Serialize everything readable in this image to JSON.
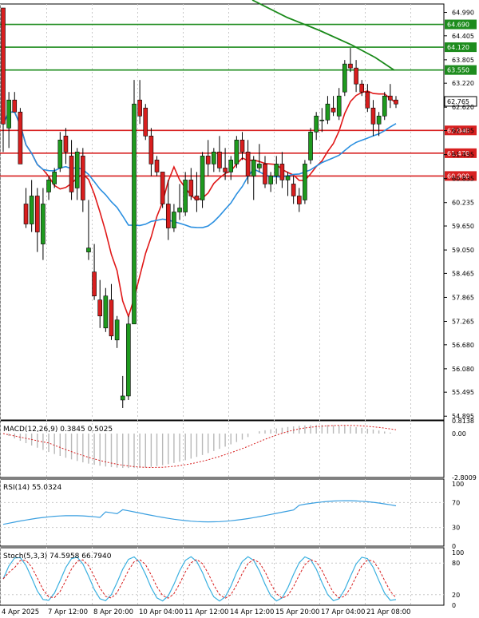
{
  "chart_data": {
    "type": "candlestick",
    "main_panel": {
      "y_axis_ticks": [
        "64.990",
        "64.405",
        "63.805",
        "63.220",
        "62.620",
        "62.035",
        "61.435",
        "60.835",
        "60.235",
        "59.650",
        "59.050",
        "58.465",
        "57.865",
        "57.265",
        "56.680",
        "56.080",
        "55.495",
        "54.895"
      ],
      "price_lines": [
        {
          "value": 64.69,
          "label": "64.690",
          "color": "#1e8c1e"
        },
        {
          "value": 64.12,
          "label": "64.120",
          "color": "#1e8c1e"
        },
        {
          "value": 63.55,
          "label": "63.550",
          "color": "#1e8c1e"
        },
        {
          "value": 62.04,
          "label": "62.040",
          "color": "#d82020"
        },
        {
          "value": 61.47,
          "label": "61.470",
          "color": "#d82020"
        },
        {
          "value": 60.9,
          "label": "60.900",
          "color": "#d82020"
        }
      ],
      "current_price": {
        "value": 62.765,
        "label": "62.765"
      },
      "candles": [
        [
          65.1,
          65.1,
          61.5,
          62.2
        ],
        [
          62.1,
          63.0,
          61.6,
          62.8
        ],
        [
          62.8,
          63.0,
          62.5,
          62.5
        ],
        [
          62.5,
          62.6,
          61.3,
          61.2
        ],
        [
          60.2,
          60.6,
          59.6,
          59.7
        ],
        [
          59.7,
          60.8,
          59.5,
          60.4
        ],
        [
          60.4,
          60.6,
          59.0,
          59.5
        ],
        [
          59.2,
          60.6,
          58.8,
          60.2
        ],
        [
          60.5,
          60.9,
          60.3,
          60.8
        ],
        [
          60.7,
          61.1,
          60.6,
          61.0
        ],
        [
          61.1,
          62.0,
          61.0,
          61.8
        ],
        [
          61.9,
          62.1,
          61.2,
          61.5
        ],
        [
          61.4,
          61.8,
          60.3,
          60.5
        ],
        [
          60.6,
          61.6,
          60.3,
          61.5
        ],
        [
          61.4,
          61.6,
          60.0,
          60.3
        ],
        [
          59.0,
          60.3,
          58.8,
          59.1
        ],
        [
          58.5,
          59.2,
          57.8,
          57.9
        ],
        [
          57.8,
          58.3,
          57.1,
          57.4
        ],
        [
          57.1,
          58.1,
          57.0,
          57.9
        ],
        [
          57.8,
          58.2,
          56.8,
          56.9
        ],
        [
          56.8,
          57.4,
          56.6,
          57.3
        ],
        [
          55.3,
          55.9,
          55.1,
          55.4
        ],
        [
          55.4,
          57.4,
          55.3,
          57.2
        ],
        [
          57.2,
          63.3,
          57.2,
          62.7
        ],
        [
          62.8,
          63.3,
          62.2,
          62.4
        ],
        [
          62.6,
          62.7,
          61.8,
          61.9
        ],
        [
          61.9,
          62.1,
          60.9,
          61.2
        ],
        [
          61.3,
          61.4,
          60.9,
          61.0
        ],
        [
          61.0,
          61.0,
          60.1,
          60.2
        ],
        [
          60.2,
          60.8,
          59.3,
          59.6
        ],
        [
          59.6,
          60.2,
          59.5,
          60.0
        ],
        [
          60.0,
          60.7,
          59.8,
          60.1
        ],
        [
          60.0,
          61.0,
          59.9,
          60.8
        ],
        [
          60.8,
          61.1,
          60.3,
          60.4
        ],
        [
          60.4,
          61.0,
          60.0,
          60.3
        ],
        [
          60.3,
          61.5,
          60.1,
          61.4
        ],
        [
          61.4,
          61.8,
          60.9,
          61.2
        ],
        [
          61.2,
          61.6,
          61.0,
          61.5
        ],
        [
          61.5,
          61.9,
          61.0,
          61.1
        ],
        [
          61.1,
          61.6,
          60.8,
          61.0
        ],
        [
          61.0,
          61.4,
          60.8,
          61.3
        ],
        [
          61.2,
          61.9,
          61.1,
          61.8
        ],
        [
          61.8,
          62.0,
          61.3,
          61.5
        ],
        [
          61.5,
          61.8,
          60.7,
          60.9
        ],
        [
          60.9,
          61.4,
          60.3,
          61.3
        ],
        [
          61.1,
          61.7,
          61.0,
          61.2
        ],
        [
          61.2,
          61.4,
          60.6,
          60.7
        ],
        [
          60.7,
          61.0,
          60.5,
          60.9
        ],
        [
          60.9,
          61.4,
          60.7,
          61.2
        ],
        [
          61.2,
          61.5,
          60.6,
          60.8
        ],
        [
          60.8,
          61.0,
          60.4,
          60.9
        ],
        [
          60.7,
          60.9,
          60.2,
          60.4
        ],
        [
          60.4,
          60.6,
          60.0,
          60.2
        ],
        [
          60.3,
          61.3,
          60.2,
          61.2
        ],
        [
          61.3,
          62.1,
          61.2,
          62.0
        ],
        [
          62.0,
          62.5,
          61.8,
          62.4
        ],
        [
          62.3,
          62.6,
          62.0,
          62.3
        ],
        [
          62.3,
          62.9,
          62.2,
          62.7
        ],
        [
          62.6,
          62.9,
          62.4,
          62.5
        ],
        [
          62.4,
          63.1,
          62.3,
          62.9
        ],
        [
          63.0,
          63.8,
          62.9,
          63.7
        ],
        [
          63.7,
          64.1,
          63.5,
          63.6
        ],
        [
          63.6,
          63.8,
          63.0,
          63.2
        ],
        [
          63.2,
          63.3,
          62.9,
          63.0
        ],
        [
          63.0,
          63.2,
          62.5,
          62.6
        ],
        [
          62.6,
          62.8,
          61.9,
          62.2
        ],
        [
          62.2,
          62.5,
          61.9,
          62.4
        ],
        [
          62.4,
          63.0,
          62.3,
          62.9
        ],
        [
          62.9,
          63.2,
          62.6,
          62.8
        ],
        [
          62.8,
          62.9,
          62.6,
          62.7
        ]
      ]
    },
    "macd": {
      "label": "MACD(12,26,9) 0.3845 0.5025",
      "ticks": [
        "0.8138",
        "0.00",
        "-2.8009"
      ]
    },
    "rsi": {
      "label": "RSI(14) 55.0324",
      "ticks": [
        "100",
        "70",
        "30",
        "0"
      ]
    },
    "stoch": {
      "label": "Stoch(5,3,3) 74.5958 66.7940",
      "ticks": [
        "100",
        "80",
        "20",
        "0"
      ]
    },
    "x_axis_labels": [
      "4 Apr 2025",
      "7 Apr 12:00",
      "8 Apr 20:00",
      "10 Apr 04:00",
      "11 Apr 12:00",
      "14 Apr 12:00",
      "15 Apr 20:00",
      "17 Apr 04:00",
      "21 Apr 08:00"
    ],
    "colors": {
      "bull": "#1e9a1e",
      "bear": "#d81e1e",
      "ma_fast": "#e01818",
      "ma_mid": "#2a8fe0",
      "ma_slow": "#1a8a1a",
      "rsi": "#3a9fe0",
      "stoch_main": "#3ab0e0",
      "stoch_signal": "#d81e1e"
    }
  }
}
